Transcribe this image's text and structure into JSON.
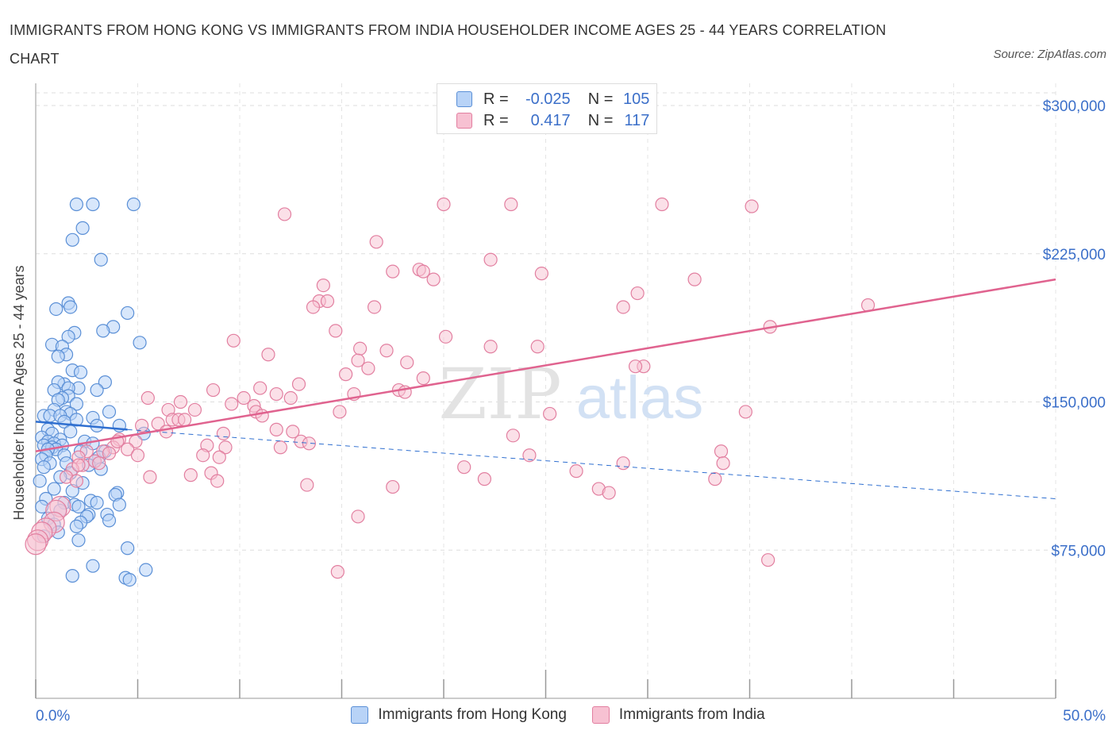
{
  "title": "IMMIGRANTS FROM HONG KONG VS IMMIGRANTS FROM INDIA HOUSEHOLDER INCOME AGES 25 - 44 YEARS CORRELATION CHART",
  "source": "Source: ZipAtlas.com",
  "watermark": {
    "zip": "ZIP",
    "atlas": "atlas"
  },
  "legend": {
    "r_label": "R =",
    "n_label": "N =",
    "rows": [
      {
        "r": "-0.025",
        "n": "105"
      },
      {
        "r": "0.417",
        "n": "117"
      }
    ]
  },
  "colors": {
    "hong_kong_fill": "#b8d3f7",
    "hong_kong_stroke": "#5a8fd6",
    "hong_kong_line": "#2f6fd0",
    "india_fill": "#f7c1d2",
    "india_stroke": "#e27fa0",
    "india_line": "#e0638f",
    "axis_value_color": "#3b6fc9"
  },
  "chart_data": {
    "type": "scatter",
    "xlabel": "",
    "ylabel": "Householder Income Ages 25 - 44 years",
    "xlim": [
      0,
      50
    ],
    "ylim": [
      0,
      300000
    ],
    "y_ticks": [
      75000,
      150000,
      225000,
      300000
    ],
    "y_tick_labels": [
      "$75,000",
      "$150,000",
      "$225,000",
      "$300,000"
    ],
    "x_tick_labels": [
      "0.0%",
      "50.0%"
    ],
    "grid": true,
    "legend_position": "top-center",
    "series": [
      {
        "name": "Immigrants from Hong Kong",
        "trend": {
          "x": [
            0,
            4.5
          ],
          "y": [
            140000,
            136000
          ]
        },
        "trend_extension": {
          "x": [
            4.5,
            50
          ],
          "y": [
            136000,
            101000
          ]
        },
        "points": [
          [
            2.0,
            250000
          ],
          [
            2.8,
            250000
          ],
          [
            4.8,
            250000
          ],
          [
            2.3,
            238000
          ],
          [
            1.8,
            232000
          ],
          [
            3.2,
            222000
          ],
          [
            1.6,
            200000
          ],
          [
            1.7,
            198000
          ],
          [
            1.0,
            197000
          ],
          [
            4.5,
            195000
          ],
          [
            3.8,
            188000
          ],
          [
            3.3,
            186000
          ],
          [
            1.9,
            185000
          ],
          [
            1.6,
            183000
          ],
          [
            5.1,
            180000
          ],
          [
            0.8,
            179000
          ],
          [
            1.3,
            178000
          ],
          [
            1.5,
            174000
          ],
          [
            1.1,
            173000
          ],
          [
            1.8,
            166000
          ],
          [
            2.2,
            165000
          ],
          [
            3.4,
            160000
          ],
          [
            1.4,
            159000
          ],
          [
            1.1,
            160000
          ],
          [
            2.1,
            157000
          ],
          [
            1.6,
            157000
          ],
          [
            0.9,
            156000
          ],
          [
            3.0,
            156000
          ],
          [
            1.6,
            153000
          ],
          [
            1.3,
            152000
          ],
          [
            1.1,
            151000
          ],
          [
            2.0,
            149000
          ],
          [
            3.6,
            145000
          ],
          [
            0.9,
            146000
          ],
          [
            1.5,
            145000
          ],
          [
            1.7,
            144000
          ],
          [
            0.4,
            143000
          ],
          [
            0.7,
            143000
          ],
          [
            1.2,
            143000
          ],
          [
            2.8,
            142000
          ],
          [
            2.0,
            141000
          ],
          [
            1.4,
            140000
          ],
          [
            3.0,
            138000
          ],
          [
            4.1,
            138000
          ],
          [
            0.6,
            136000
          ],
          [
            1.7,
            135000
          ],
          [
            0.8,
            134000
          ],
          [
            5.3,
            134000
          ],
          [
            0.3,
            132000
          ],
          [
            1.2,
            131000
          ],
          [
            2.4,
            130000
          ],
          [
            0.6,
            130000
          ],
          [
            0.9,
            129000
          ],
          [
            2.8,
            129000
          ],
          [
            0.4,
            128000
          ],
          [
            1.3,
            128000
          ],
          [
            0.8,
            127000
          ],
          [
            1.0,
            126000
          ],
          [
            0.6,
            126000
          ],
          [
            3.4,
            125000
          ],
          [
            2.2,
            125000
          ],
          [
            0.5,
            123000
          ],
          [
            1.4,
            123000
          ],
          [
            3.1,
            122000
          ],
          [
            0.3,
            121000
          ],
          [
            2.9,
            120000
          ],
          [
            0.7,
            119000
          ],
          [
            1.5,
            119000
          ],
          [
            2.6,
            118000
          ],
          [
            0.4,
            117000
          ],
          [
            3.2,
            116000
          ],
          [
            1.7,
            114000
          ],
          [
            1.2,
            112000
          ],
          [
            0.2,
            110000
          ],
          [
            2.3,
            109000
          ],
          [
            0.9,
            106000
          ],
          [
            1.8,
            105000
          ],
          [
            4.0,
            104000
          ],
          [
            3.9,
            103000
          ],
          [
            0.5,
            101000
          ],
          [
            2.7,
            100000
          ],
          [
            1.4,
            99000
          ],
          [
            3.0,
            99000
          ],
          [
            1.9,
            98000
          ],
          [
            4.1,
            98000
          ],
          [
            2.1,
            97000
          ],
          [
            0.3,
            97000
          ],
          [
            1.2,
            95000
          ],
          [
            2.6,
            93000
          ],
          [
            3.5,
            93000
          ],
          [
            2.5,
            92000
          ],
          [
            0.6,
            91000
          ],
          [
            3.6,
            90000
          ],
          [
            2.2,
            89000
          ],
          [
            0.9,
            88000
          ],
          [
            2.0,
            87000
          ],
          [
            1.1,
            84000
          ],
          [
            0.4,
            82000
          ],
          [
            2.1,
            80000
          ],
          [
            4.5,
            76000
          ],
          [
            2.8,
            67000
          ],
          [
            5.4,
            65000
          ],
          [
            1.8,
            62000
          ],
          [
            4.4,
            61000
          ],
          [
            4.6,
            60000
          ]
        ]
      },
      {
        "name": "Immigrants from India",
        "trend": {
          "x": [
            0,
            50
          ],
          "y": [
            125000,
            212000
          ]
        },
        "points": [
          [
            20.0,
            250000
          ],
          [
            23.3,
            250000
          ],
          [
            30.7,
            250000
          ],
          [
            35.1,
            249000
          ],
          [
            12.2,
            245000
          ],
          [
            16.7,
            231000
          ],
          [
            22.3,
            222000
          ],
          [
            18.8,
            217000
          ],
          [
            17.5,
            216000
          ],
          [
            19.0,
            216000
          ],
          [
            24.8,
            215000
          ],
          [
            19.5,
            212000
          ],
          [
            32.3,
            212000
          ],
          [
            14.1,
            209000
          ],
          [
            29.5,
            205000
          ],
          [
            13.9,
            201000
          ],
          [
            14.3,
            201000
          ],
          [
            13.6,
            198000
          ],
          [
            16.6,
            198000
          ],
          [
            28.8,
            198000
          ],
          [
            40.8,
            199000
          ],
          [
            36.0,
            188000
          ],
          [
            14.7,
            186000
          ],
          [
            20.1,
            183000
          ],
          [
            9.7,
            181000
          ],
          [
            22.3,
            178000
          ],
          [
            24.6,
            178000
          ],
          [
            15.9,
            177000
          ],
          [
            17.2,
            176000
          ],
          [
            11.4,
            174000
          ],
          [
            15.8,
            171000
          ],
          [
            18.2,
            170000
          ],
          [
            29.8,
            168000
          ],
          [
            16.3,
            167000
          ],
          [
            29.4,
            168000
          ],
          [
            15.2,
            164000
          ],
          [
            19.0,
            162000
          ],
          [
            12.9,
            159000
          ],
          [
            11.0,
            157000
          ],
          [
            8.7,
            156000
          ],
          [
            17.8,
            156000
          ],
          [
            18.1,
            155000
          ],
          [
            11.8,
            154000
          ],
          [
            15.6,
            154000
          ],
          [
            5.5,
            152000
          ],
          [
            10.2,
            152000
          ],
          [
            12.5,
            152000
          ],
          [
            7.1,
            150000
          ],
          [
            9.6,
            149000
          ],
          [
            10.7,
            148000
          ],
          [
            6.5,
            146000
          ],
          [
            7.8,
            146000
          ],
          [
            14.9,
            145000
          ],
          [
            10.8,
            145000
          ],
          [
            25.2,
            144000
          ],
          [
            34.8,
            145000
          ],
          [
            11.1,
            143000
          ],
          [
            6.7,
            141000
          ],
          [
            7.0,
            141000
          ],
          [
            7.3,
            141000
          ],
          [
            6.0,
            139000
          ],
          [
            5.2,
            138000
          ],
          [
            11.8,
            136000
          ],
          [
            6.4,
            135000
          ],
          [
            12.6,
            135000
          ],
          [
            9.2,
            134000
          ],
          [
            23.4,
            133000
          ],
          [
            4.1,
            131000
          ],
          [
            4.9,
            130000
          ],
          [
            13.0,
            130000
          ],
          [
            13.4,
            129000
          ],
          [
            8.4,
            128000
          ],
          [
            9.3,
            127000
          ],
          [
            3.8,
            127000
          ],
          [
            12.0,
            127000
          ],
          [
            4.5,
            126000
          ],
          [
            2.5,
            125000
          ],
          [
            3.3,
            125000
          ],
          [
            3.6,
            124000
          ],
          [
            8.2,
            123000
          ],
          [
            5.0,
            123000
          ],
          [
            24.2,
            123000
          ],
          [
            33.6,
            125000
          ],
          [
            2.1,
            122000
          ],
          [
            2.9,
            120000
          ],
          [
            3.1,
            119000
          ],
          [
            2.3,
            118000
          ],
          [
            28.8,
            119000
          ],
          [
            33.7,
            119000
          ],
          [
            21.0,
            117000
          ],
          [
            1.8,
            116000
          ],
          [
            8.6,
            114000
          ],
          [
            7.6,
            113000
          ],
          [
            5.6,
            112000
          ],
          [
            1.5,
            112000
          ],
          [
            8.9,
            110000
          ],
          [
            22.0,
            111000
          ],
          [
            33.3,
            111000
          ],
          [
            2.0,
            110000
          ],
          [
            13.3,
            108000
          ],
          [
            17.5,
            107000
          ],
          [
            27.6,
            106000
          ],
          [
            28.1,
            104000
          ],
          [
            1.2,
            97000
          ],
          [
            1.0,
            95000
          ],
          [
            15.8,
            92000
          ],
          [
            0.9,
            89000
          ],
          [
            0.5,
            86000
          ],
          [
            0.3,
            84000
          ],
          [
            0.1,
            80000
          ],
          [
            0.0,
            78000
          ],
          [
            35.9,
            70000
          ],
          [
            14.8,
            64000
          ],
          [
            2.1,
            118000
          ],
          [
            9.0,
            122000
          ],
          [
            26.5,
            115000
          ],
          [
            4.0,
            130000
          ]
        ]
      }
    ]
  },
  "bottom_legend": [
    "Immigrants from Hong Kong",
    "Immigrants from India"
  ]
}
